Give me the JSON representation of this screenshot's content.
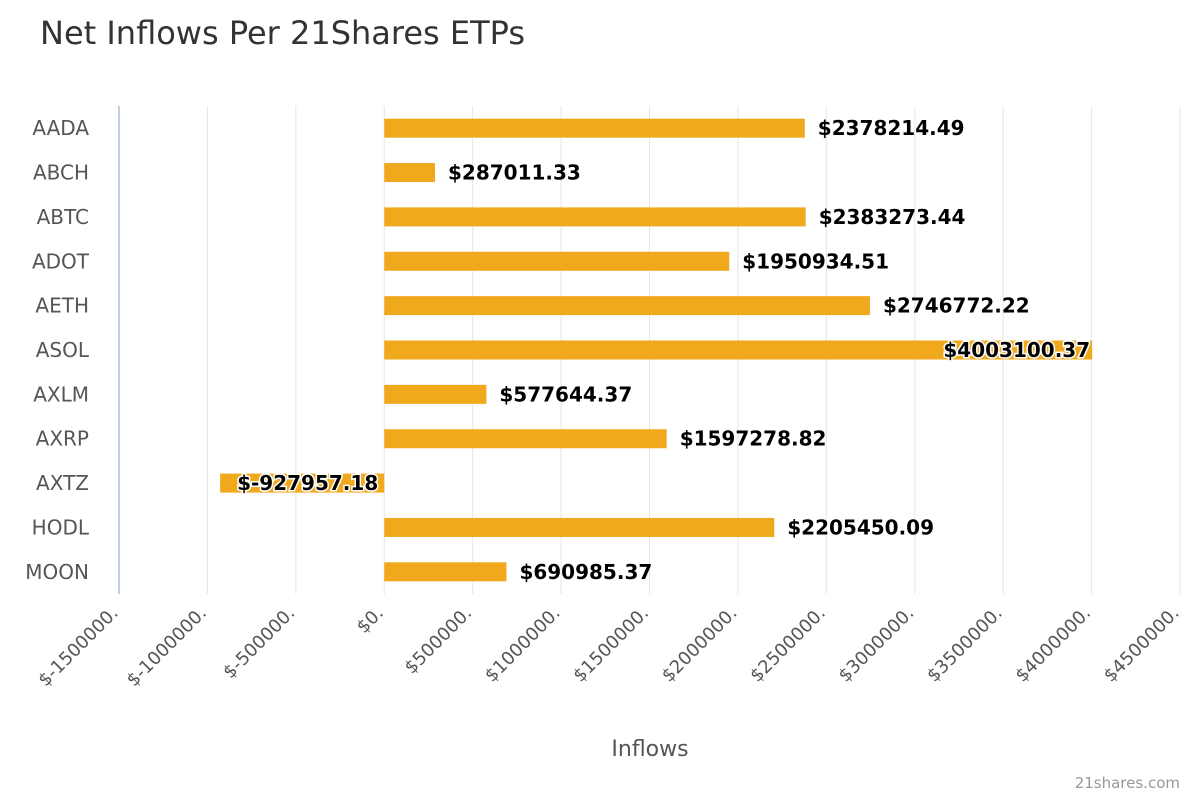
{
  "chart_data": {
    "type": "bar",
    "orientation": "horizontal",
    "title": "Net Inflows Per 21Shares ETPs",
    "xlabel": "Inflows",
    "ylabel": "",
    "categories": [
      "AADA",
      "ABCH",
      "ABTC",
      "ADOT",
      "AETH",
      "ASOL",
      "AXLM",
      "AXRP",
      "AXTZ",
      "HODL",
      "MOON"
    ],
    "values": [
      2378214.49,
      287011.33,
      2383273.44,
      1950934.51,
      2746772.22,
      4003100.37,
      577644.37,
      1597278.82,
      -927957.18,
      2205450.09,
      690985.37
    ],
    "data_labels": [
      "$2378214.49",
      "$287011.33",
      "$2383273.44",
      "$1950934.51",
      "$2746772.22",
      "$4003100.37",
      "$577644.37",
      "$1597278.82",
      "$-927957.18",
      "$2205450.09",
      "$690985.37"
    ],
    "xlim": [
      -1500000,
      4500000
    ],
    "x_ticks": [
      -1500000,
      -1000000,
      -500000,
      0,
      500000,
      1000000,
      1500000,
      2000000,
      2500000,
      3000000,
      3500000,
      4000000,
      4500000
    ],
    "x_tick_labels": [
      "$-1500000.",
      "$-1000000.",
      "$-500000.",
      "$0.",
      "$500000.",
      "$1000000.",
      "$1500000.",
      "$2000000.",
      "$2500000.",
      "$3000000.",
      "$3500000.",
      "$4000000.",
      "$4500000."
    ],
    "bar_color": "#f0a91c",
    "grid": true,
    "legend": "none"
  },
  "credit": "21shares.com"
}
